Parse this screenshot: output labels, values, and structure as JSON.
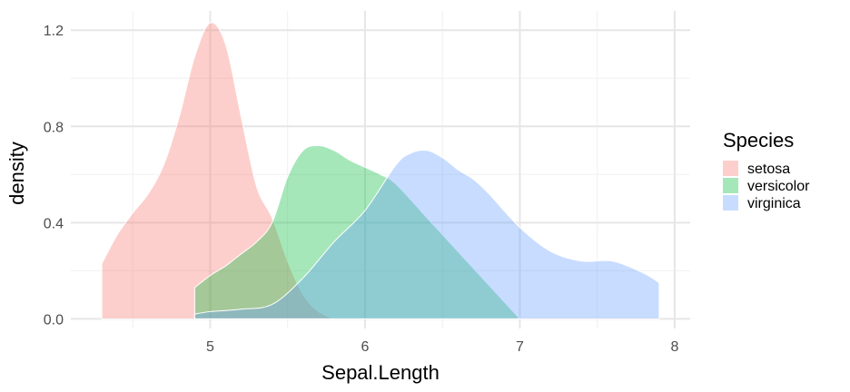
{
  "chart_data": {
    "type": "area",
    "xlabel": "Sepal.Length",
    "ylabel": "density",
    "xlim": [
      4.1,
      8.1
    ],
    "ylim": [
      -0.04,
      1.28
    ],
    "x_ticks": [
      5,
      6,
      7,
      8
    ],
    "y_ticks": [
      0.0,
      0.4,
      0.8,
      1.2
    ],
    "x_tick_labels": [
      "5",
      "6",
      "7",
      "8"
    ],
    "y_tick_labels": [
      "0.0",
      "0.4",
      "0.8",
      "1.2"
    ],
    "grid": true,
    "legend": {
      "title": "Species",
      "position": "right"
    },
    "series": [
      {
        "name": "setosa",
        "color": "#F8766D",
        "x": [
          4.3,
          4.4,
          4.5,
          4.6,
          4.7,
          4.8,
          4.9,
          5.0,
          5.1,
          5.2,
          5.3,
          5.4,
          5.5,
          5.6,
          5.7,
          5.8
        ],
        "y": [
          0.23,
          0.35,
          0.44,
          0.52,
          0.64,
          0.84,
          1.09,
          1.23,
          1.14,
          0.84,
          0.55,
          0.42,
          0.24,
          0.1,
          0.03,
          0.0
        ]
      },
      {
        "name": "versicolor",
        "color": "#00BA38",
        "x": [
          4.9,
          5.0,
          5.1,
          5.2,
          5.3,
          5.4,
          5.5,
          5.6,
          5.7,
          5.8,
          5.9,
          6.0,
          6.1,
          6.2,
          6.4,
          6.6,
          6.8,
          7.0
        ],
        "y": [
          0.13,
          0.18,
          0.22,
          0.27,
          0.32,
          0.4,
          0.59,
          0.7,
          0.72,
          0.7,
          0.66,
          0.63,
          0.6,
          0.56,
          0.42,
          0.28,
          0.14,
          0.0
        ]
      },
      {
        "name": "virginica",
        "color": "#619CFF",
        "x": [
          4.9,
          5.0,
          5.2,
          5.4,
          5.6,
          5.8,
          6.0,
          6.2,
          6.3,
          6.4,
          6.5,
          6.6,
          6.7,
          6.8,
          7.0,
          7.2,
          7.4,
          7.6,
          7.8,
          7.9
        ],
        "y": [
          0.02,
          0.03,
          0.04,
          0.06,
          0.17,
          0.32,
          0.45,
          0.64,
          0.69,
          0.7,
          0.67,
          0.62,
          0.58,
          0.52,
          0.38,
          0.28,
          0.24,
          0.24,
          0.19,
          0.15
        ]
      }
    ]
  }
}
